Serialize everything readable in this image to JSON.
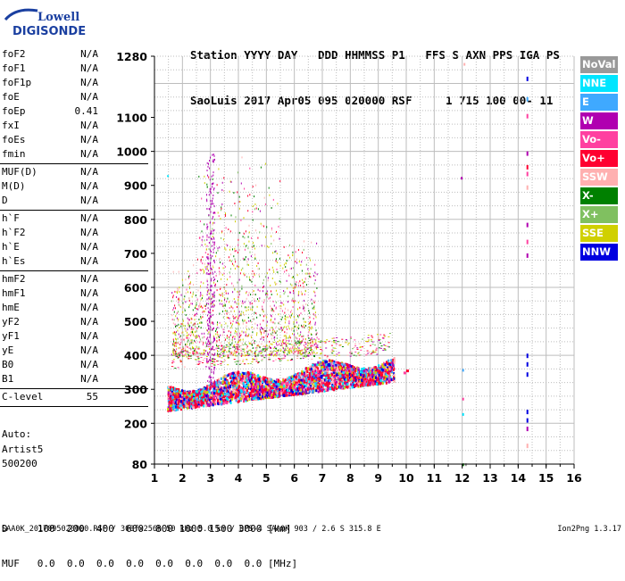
{
  "logo": {
    "line1": "Lowell",
    "line2": "DIGISONDE"
  },
  "header": {
    "line1": "Station YYYY DAY   DDD HHMMSS P1   FFS S AXN PPS IGA PS",
    "line2": "SaoLuis 2017 Apr05 095 020000 RSF     1 715 100 00- 11"
  },
  "params": [
    {
      "name": "foF2",
      "value": "N/A"
    },
    {
      "name": "foF1",
      "value": "N/A"
    },
    {
      "name": "foF1p",
      "value": "N/A"
    },
    {
      "name": "foE",
      "value": "N/A"
    },
    {
      "name": "foEp",
      "value": "0.41"
    },
    {
      "name": "fxI",
      "value": "N/A"
    },
    {
      "name": "foEs",
      "value": "N/A"
    },
    {
      "name": "fmin",
      "value": "N/A"
    },
    {
      "name": "MUF(D)",
      "value": "N/A"
    },
    {
      "name": "M(D)",
      "value": "N/A"
    },
    {
      "name": "D",
      "value": "N/A"
    },
    {
      "name": "h`F",
      "value": "N/A"
    },
    {
      "name": "h`F2",
      "value": "N/A"
    },
    {
      "name": "h`E",
      "value": "N/A"
    },
    {
      "name": "h`Es",
      "value": "N/A"
    },
    {
      "name": "hmF2",
      "value": "N/A"
    },
    {
      "name": "hmF1",
      "value": "N/A"
    },
    {
      "name": "hmE",
      "value": "N/A"
    },
    {
      "name": "yF2",
      "value": "N/A"
    },
    {
      "name": "yF1",
      "value": "N/A"
    },
    {
      "name": "yE",
      "value": "N/A"
    },
    {
      "name": "B0",
      "value": "N/A"
    },
    {
      "name": "B1",
      "value": "N/A"
    },
    {
      "name": "C-level",
      "value": "55"
    }
  ],
  "auto": {
    "line1": "Auto:",
    "line2": "Artist5",
    "line3": "500200"
  },
  "legend": [
    {
      "label": "NoVal",
      "color": "#999999"
    },
    {
      "label": "NNE",
      "color": "#00e5ff"
    },
    {
      "label": "E",
      "color": "#3fa9ff"
    },
    {
      "label": "W",
      "color": "#b000b0"
    },
    {
      "label": "Vo-",
      "color": "#ff40a0"
    },
    {
      "label": "Vo+",
      "color": "#ff0030"
    },
    {
      "label": "SSW",
      "color": "#ffb0b0"
    },
    {
      "label": "X-",
      "color": "#008000"
    },
    {
      "label": "X+",
      "color": "#80c060"
    },
    {
      "label": "SSE",
      "color": "#d0d000"
    },
    {
      "label": "NNW",
      "color": "#0000e0"
    }
  ],
  "dtable": {
    "line1": "D     100  200  400  600  800 1000 1500 3000 [km]",
    "line2": "MUF   0.0  0.0  0.0  0.0  0.0  0.0  0.0  0.0 [MHz]"
  },
  "footer": {
    "left": "SAA0K_2017095020000.RSF / 300fx256h 50 kHz 5.0 km / DPS-4 SAA0K 903 / 2.6 S 315.8 E",
    "right": "Ion2Png 1.3.17"
  },
  "chart_data": {
    "type": "scatter",
    "xlim": [
      1,
      16
    ],
    "ylim": [
      80,
      1280
    ],
    "xticks": [
      "1",
      "2",
      "3",
      "4",
      "5",
      "6",
      "7",
      "8",
      "9",
      "10",
      "11",
      "12",
      "13",
      "14",
      "15",
      "16"
    ],
    "yticks": [
      "80",
      "200",
      "300",
      "400",
      "500",
      "600",
      "700",
      "800",
      "900",
      "1000",
      "1100",
      "1280"
    ],
    "grid": true,
    "xlabel": "",
    "ylabel": "",
    "traces": [
      {
        "name": "F-trace lower",
        "x_range": [
          1.5,
          9.5
        ],
        "y_start": 240,
        "y_end": 340
      },
      {
        "name": "F-trace main",
        "x_range": [
          1.5,
          9.8
        ],
        "y_start": 280,
        "y_end": 380
      },
      {
        "name": "spread-F 1",
        "x_range": [
          2.5,
          6.5
        ],
        "y_range": [
          400,
          1000
        ]
      },
      {
        "name": "spread-F 2",
        "x_range": [
          1.6,
          3.2
        ],
        "y_range": [
          400,
          680
        ]
      },
      {
        "name": "sporadic column 12",
        "x": 12.0,
        "y_range": [
          80,
          1260
        ]
      },
      {
        "name": "sporadic column 14.3",
        "x": 14.3,
        "y_range": [
          140,
          1220
        ]
      }
    ]
  }
}
